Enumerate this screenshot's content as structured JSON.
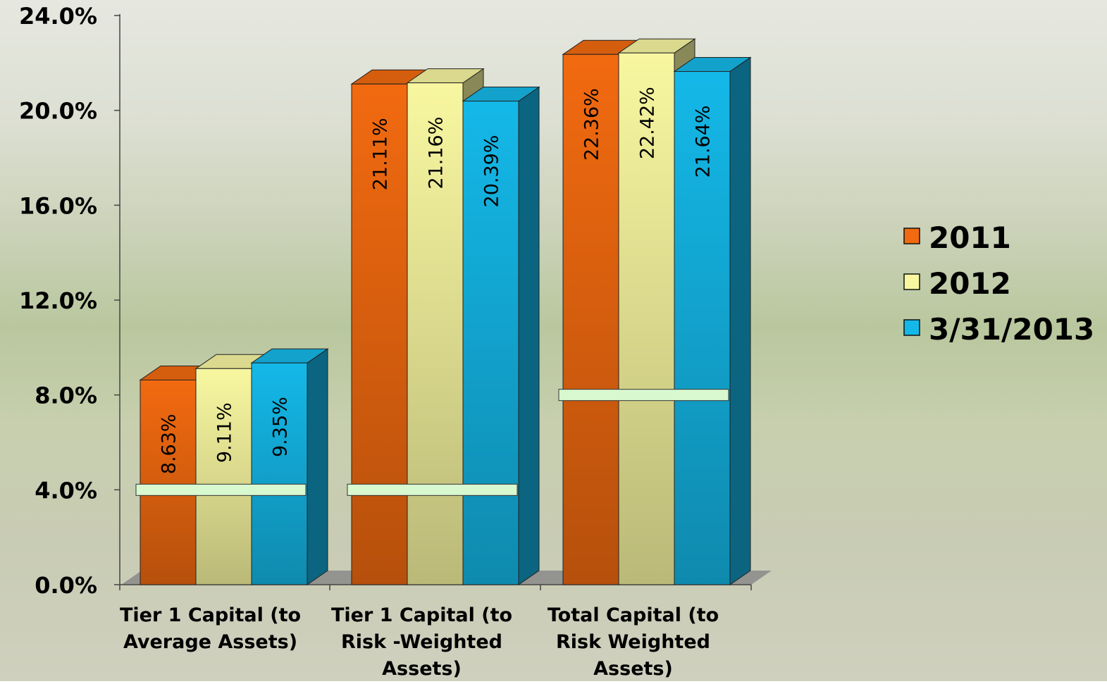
{
  "chart_data": {
    "type": "bar",
    "categories": [
      [
        "Tier 1 Capital (to",
        "Average Assets)"
      ],
      [
        "Tier 1 Capital (to",
        "Risk -Weighted",
        "Assets)"
      ],
      [
        "Total Capital (to",
        "Risk Weighted",
        "Assets)"
      ]
    ],
    "series": [
      {
        "name": "2011",
        "values": [
          8.63,
          21.11,
          22.36
        ],
        "labels": [
          "8.63%",
          "21.11%",
          "22.36%"
        ]
      },
      {
        "name": "2012",
        "values": [
          9.11,
          21.16,
          22.42
        ],
        "labels": [
          "9.11%",
          "21.16%",
          "22.42%"
        ]
      },
      {
        "name": "3/31/2013",
        "values": [
          9.35,
          20.39,
          21.64
        ],
        "labels": [
          "9.35%",
          "20.39%",
          "21.64%"
        ]
      }
    ],
    "threshold_lines": [
      4.0,
      4.0,
      8.0
    ],
    "yticks": [
      "0.0%",
      "4.0%",
      "8.0%",
      "12.0%",
      "16.0%",
      "20.0%",
      "24.0%"
    ],
    "ylim": [
      0,
      24
    ],
    "legend_position": "right",
    "colors": {
      "2011": "#f26a10",
      "2012": "#f8f7a0",
      "3/31/2013": "#14b8e8",
      "threshold": "#d8f8d0",
      "floor": "#8a8a8a"
    }
  }
}
